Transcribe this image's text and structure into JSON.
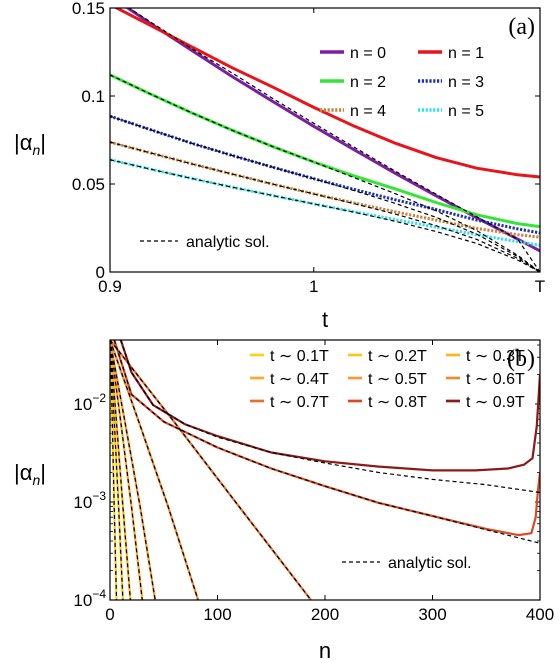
{
  "chart_data": [
    {
      "type": "line",
      "panel_label": "(a)",
      "xlabel": "t",
      "ylabel": "|α",
      "ylabel_sub": "n",
      "ylabel_end": "|",
      "xlim": [
        0.9,
        1.111
      ],
      "ylim": [
        0,
        0.15
      ],
      "x_ticks": [
        {
          "value": 0.9,
          "label": "0.9"
        },
        {
          "value": 1.0,
          "label": "1"
        },
        {
          "value": 1.111,
          "label": "T"
        }
      ],
      "y_ticks": [
        {
          "value": 0,
          "label": "0"
        },
        {
          "value": 0.05,
          "label": "0.05"
        },
        {
          "value": 0.1,
          "label": "0.1"
        },
        {
          "value": 0.15,
          "label": "0.15"
        }
      ],
      "x": [
        0.9,
        0.92,
        0.94,
        0.96,
        0.98,
        1.0,
        1.02,
        1.04,
        1.06,
        1.08,
        1.1,
        1.111
      ],
      "series": [
        {
          "name": "n = 0",
          "color": "#7b1fa2",
          "dash": "solid",
          "values": [
            0.157,
            0.141,
            0.126,
            0.111,
            0.0968,
            0.0828,
            0.0693,
            0.0561,
            0.0433,
            0.0308,
            0.0187,
            0.012
          ]
        },
        {
          "name": "n = 1",
          "color": "#e8141a",
          "dash": "solid",
          "values": [
            0.152,
            0.14,
            0.128,
            0.116,
            0.105,
            0.0935,
            0.0828,
            0.0732,
            0.065,
            0.059,
            0.0552,
            0.054
          ]
        },
        {
          "name": "n = 2",
          "color": "#33e633",
          "dash": "solid",
          "values": [
            0.112,
            0.101,
            0.0905,
            0.0805,
            0.0712,
            0.0625,
            0.0545,
            0.0472,
            0.0395,
            0.0325,
            0.0275,
            0.0258
          ]
        },
        {
          "name": "n = 3",
          "color": "#1f2fb5",
          "dash": "dotted",
          "values": [
            0.0885,
            0.0808,
            0.0732,
            0.0662,
            0.0595,
            0.053,
            0.0469,
            0.041,
            0.0355,
            0.0295,
            0.0245,
            0.0222
          ]
        },
        {
          "name": "n = 4",
          "color": "#c8843a",
          "dash": "dotted",
          "values": [
            0.0738,
            0.0676,
            0.0615,
            0.0556,
            0.0499,
            0.0444,
            0.0392,
            0.0342,
            0.0295,
            0.0248,
            0.0212,
            0.0198
          ]
        },
        {
          "name": "n = 5",
          "color": "#33e0e8",
          "dash": "dotted",
          "values": [
            0.0638,
            0.0584,
            0.0532,
            0.0482,
            0.0434,
            0.0387,
            0.0342,
            0.0298,
            0.0255,
            0.0212,
            0.0172,
            0.0152
          ]
        }
      ],
      "analytic": {
        "name": "analytic sol.",
        "color": "#000000",
        "lines": [
          {
            "x": [
              0.9,
              0.92,
              0.94,
              0.96,
              0.98,
              1.0,
              1.02,
              1.04,
              1.06,
              1.08,
              1.1,
              1.111
            ],
            "values": [
              0.157,
              0.142,
              0.127,
              0.113,
              0.0985,
              0.0845,
              0.0708,
              0.0573,
              0.0442,
              0.0313,
              0.0187,
              0.0
            ]
          },
          {
            "x": [
              0.9,
              0.92,
              0.94,
              0.96,
              0.98,
              1.0,
              1.02,
              1.04,
              1.06,
              1.08,
              1.1,
              1.111
            ],
            "values": [
              0.112,
              0.101,
              0.0905,
              0.0805,
              0.0712,
              0.0625,
              0.0535,
              0.0445,
              0.0348,
              0.0235,
              0.0095,
              0.0
            ]
          },
          {
            "x": [
              0.9,
              0.92,
              0.94,
              0.96,
              0.98,
              1.0,
              1.02,
              1.04,
              1.06,
              1.08,
              1.1,
              1.111
            ],
            "values": [
              0.0885,
              0.0808,
              0.0732,
              0.0662,
              0.0595,
              0.053,
              0.0462,
              0.039,
              0.0311,
              0.0215,
              0.0088,
              0.0
            ]
          },
          {
            "x": [
              0.9,
              0.92,
              0.94,
              0.96,
              0.98,
              1.0,
              1.02,
              1.04,
              1.06,
              1.08,
              1.1,
              1.111
            ],
            "values": [
              0.0738,
              0.0676,
              0.0615,
              0.0556,
              0.0499,
              0.0444,
              0.0388,
              0.0329,
              0.0263,
              0.0185,
              0.0078,
              0.0
            ]
          },
          {
            "x": [
              0.9,
              0.92,
              0.94,
              0.96,
              0.98,
              1.0,
              1.02,
              1.04,
              1.06,
              1.08,
              1.1,
              1.111
            ],
            "values": [
              0.0638,
              0.0584,
              0.0532,
              0.0482,
              0.0434,
              0.0387,
              0.0339,
              0.0288,
              0.023,
              0.0162,
              0.0068,
              0.0
            ]
          }
        ]
      },
      "legend": {
        "placement": "top-right",
        "columns": 2
      }
    },
    {
      "type": "line",
      "panel_label": "(b)",
      "xlabel": "n",
      "ylabel": "|α",
      "ylabel_sub": "n",
      "ylabel_end": "|",
      "xlim": [
        0,
        400
      ],
      "ylim": [
        0.0001,
        0.045
      ],
      "yscale": "log",
      "x_ticks": [
        {
          "value": 0,
          "label": "0"
        },
        {
          "value": 100,
          "label": "100"
        },
        {
          "value": 200,
          "label": "200"
        },
        {
          "value": 300,
          "label": "300"
        },
        {
          "value": 400,
          "label": "400"
        }
      ],
      "y_ticks": [
        {
          "value": 0.0001,
          "label": "10",
          "exp": "−4"
        },
        {
          "value": 0.001,
          "label": "10",
          "exp": "−3"
        },
        {
          "value": 0.01,
          "label": "10",
          "exp": "−2"
        }
      ],
      "series": [
        {
          "name": "t ∼ 0.1T",
          "color": "#ffd11a",
          "x": [
            0,
            2,
            4,
            6
          ],
          "values": [
            0.045,
            0.0075,
            0.0008,
            0.0001
          ]
        },
        {
          "name": "t ∼ 0.2T",
          "color": "#ffc61a",
          "x": [
            0,
            4,
            8,
            12
          ],
          "values": [
            0.045,
            0.0065,
            0.0009,
            0.0001
          ]
        },
        {
          "name": "t ∼ 0.3T",
          "color": "#ffb51a",
          "x": [
            0,
            6,
            12,
            19
          ],
          "values": [
            0.045,
            0.0065,
            0.0009,
            0.0001
          ]
        },
        {
          "name": "t ∼ 0.4T",
          "color": "#ffa82a",
          "x": [
            0,
            10,
            20,
            30
          ],
          "values": [
            0.045,
            0.0065,
            0.0009,
            0.0001
          ]
        },
        {
          "name": "t ∼ 0.5T",
          "color": "#f79a33",
          "x": [
            0,
            14,
            28,
            42
          ],
          "values": [
            0.045,
            0.0065,
            0.0009,
            0.0001
          ]
        },
        {
          "name": "t ∼ 0.6T",
          "color": "#ee8a33",
          "x": [
            0,
            27,
            54,
            82
          ],
          "values": [
            0.045,
            0.0065,
            0.0009,
            0.0001
          ]
        },
        {
          "name": "t ∼ 0.7T",
          "color": "#e8702e",
          "x": [
            0,
            60,
            120,
            187
          ],
          "values": [
            0.045,
            0.0065,
            0.0009,
            0.0001
          ]
        },
        {
          "name": "t ∼ 0.8T",
          "color": "#d84a26",
          "x": [
            4,
            20,
            50,
            100,
            150,
            200,
            250,
            300,
            350,
            380,
            392,
            396,
            398,
            400
          ],
          "values": [
            0.045,
            0.0125,
            0.0066,
            0.0036,
            0.0022,
            0.00145,
            0.00098,
            0.00072,
            0.00053,
            0.00046,
            0.00048,
            0.0007,
            0.0013,
            0.002
          ]
        },
        {
          "name": "t ∼ 0.9T",
          "color": "#8b1a1a",
          "x": [
            10,
            20,
            40,
            70,
            100,
            150,
            200,
            250,
            300,
            340,
            370,
            385,
            393,
            397,
            400
          ],
          "values": [
            0.045,
            0.021,
            0.0098,
            0.0062,
            0.0047,
            0.0032,
            0.0026,
            0.0023,
            0.0021,
            0.0021,
            0.0022,
            0.0024,
            0.0028,
            0.006,
            0.02
          ]
        }
      ],
      "analytic": {
        "name": "analytic sol.",
        "color": "#000000",
        "lines": [
          {
            "x": [
              0,
              2,
              4,
              6
            ],
            "values": [
              0.045,
              0.0075,
              0.0008,
              0.0001
            ]
          },
          {
            "x": [
              0,
              4,
              8,
              12
            ],
            "values": [
              0.045,
              0.0065,
              0.0009,
              0.0001
            ]
          },
          {
            "x": [
              0,
              6,
              12,
              19
            ],
            "values": [
              0.045,
              0.0065,
              0.0009,
              0.0001
            ]
          },
          {
            "x": [
              0,
              10,
              20,
              30
            ],
            "values": [
              0.045,
              0.0065,
              0.0009,
              0.0001
            ]
          },
          {
            "x": [
              0,
              14,
              28,
              42
            ],
            "values": [
              0.045,
              0.0065,
              0.0009,
              0.0001
            ]
          },
          {
            "x": [
              0,
              27,
              54,
              82
            ],
            "values": [
              0.045,
              0.0065,
              0.0009,
              0.0001
            ]
          },
          {
            "x": [
              0,
              60,
              120,
              187
            ],
            "values": [
              0.045,
              0.0065,
              0.0009,
              0.0001
            ]
          },
          {
            "x": [
              4,
              20,
              50,
              100,
              150,
              200,
              250,
              300,
              350,
              400
            ],
            "values": [
              0.045,
              0.0125,
              0.0066,
              0.0036,
              0.0022,
              0.00145,
              0.00098,
              0.00072,
              0.00052,
              0.00038
            ]
          },
          {
            "x": [
              10,
              20,
              40,
              70,
              100,
              150,
              200,
              250,
              300,
              350,
              400
            ],
            "values": [
              0.045,
              0.021,
              0.0098,
              0.0062,
              0.0046,
              0.0032,
              0.0025,
              0.002,
              0.0017,
              0.0015,
              0.00125
            ]
          }
        ]
      },
      "legend": {
        "placement": "top-right",
        "columns": 3
      }
    }
  ]
}
